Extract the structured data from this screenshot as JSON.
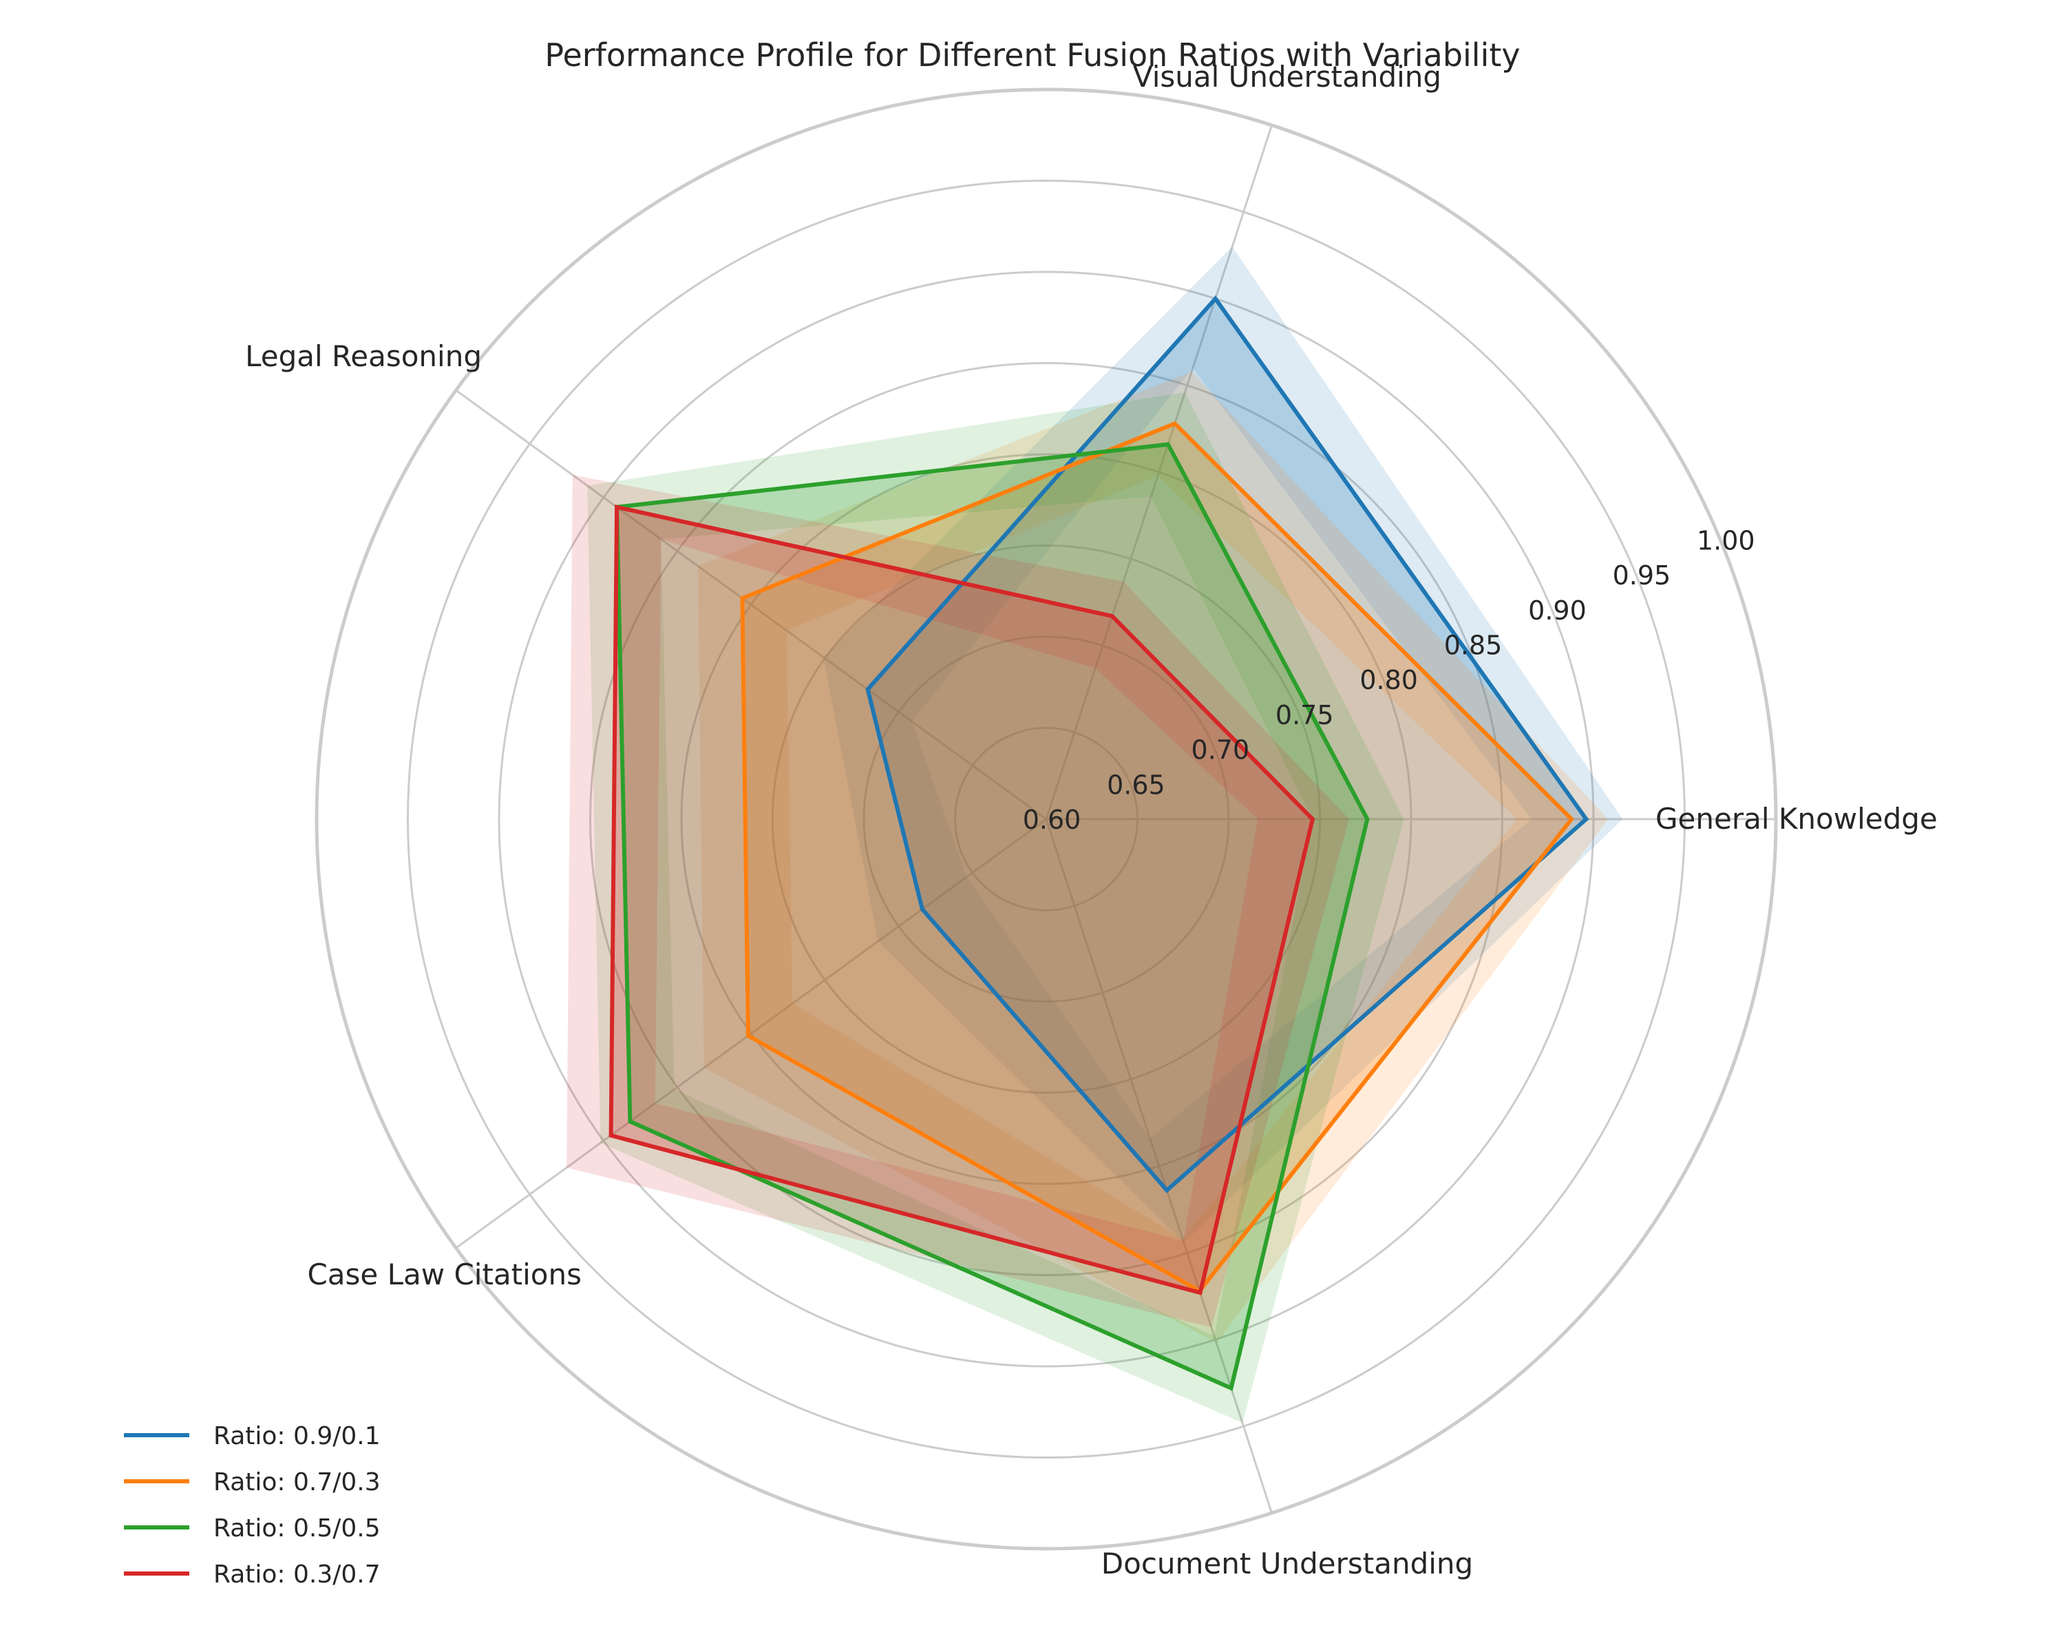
{
  "chart_data": {
    "type": "radar",
    "title": "Performance Profile for Different Fusion Ratios with Variability",
    "categories": [
      "General Knowledge",
      "Visual Understanding",
      "Legal Reasoning",
      "Case Law Citations",
      "Document Understanding"
    ],
    "rlim": [
      0.6,
      1.0
    ],
    "rticks": [
      0.6,
      0.65,
      0.7,
      0.75,
      0.8,
      0.85,
      0.9,
      0.95,
      1.0
    ],
    "rtick_labels": [
      "0.60",
      "0.65",
      "0.70",
      "0.75",
      "0.80",
      "0.85",
      "0.90",
      "0.95",
      "1.00"
    ],
    "grid": true,
    "legend_position": "lower-left",
    "series": [
      {
        "name": "Ratio: 0.9/0.1",
        "color": "#1f77b4",
        "values": [
          0.896,
          0.9,
          0.721,
          0.684,
          0.814
        ],
        "lower": [
          0.866,
          0.86,
          0.691,
          0.654,
          0.784
        ],
        "upper": [
          0.916,
          0.93,
          0.751,
          0.714,
          0.844
        ]
      },
      {
        "name": "Ratio: 0.7/0.3",
        "color": "#ff7f0e",
        "values": [
          0.888,
          0.828,
          0.806,
          0.802,
          0.872
        ],
        "lower": [
          0.858,
          0.798,
          0.776,
          0.772,
          0.842
        ],
        "upper": [
          0.908,
          0.858,
          0.836,
          0.832,
          0.902
        ]
      },
      {
        "name": "Ratio: 0.5/0.5",
        "color": "#2ca02c",
        "values": [
          0.776,
          0.816,
          0.891,
          0.882,
          0.928
        ],
        "lower": [
          0.746,
          0.786,
          0.861,
          0.852,
          0.898
        ],
        "upper": [
          0.796,
          0.846,
          0.911,
          0.902,
          0.948
        ]
      },
      {
        "name": "Ratio: 0.3/0.7",
        "color": "#d62728",
        "values": [
          0.746,
          0.717,
          0.891,
          0.895,
          0.873
        ],
        "lower": [
          0.716,
          0.687,
          0.861,
          0.865,
          0.843
        ],
        "upper": [
          0.766,
          0.737,
          0.921,
          0.925,
          0.893
        ]
      }
    ]
  }
}
